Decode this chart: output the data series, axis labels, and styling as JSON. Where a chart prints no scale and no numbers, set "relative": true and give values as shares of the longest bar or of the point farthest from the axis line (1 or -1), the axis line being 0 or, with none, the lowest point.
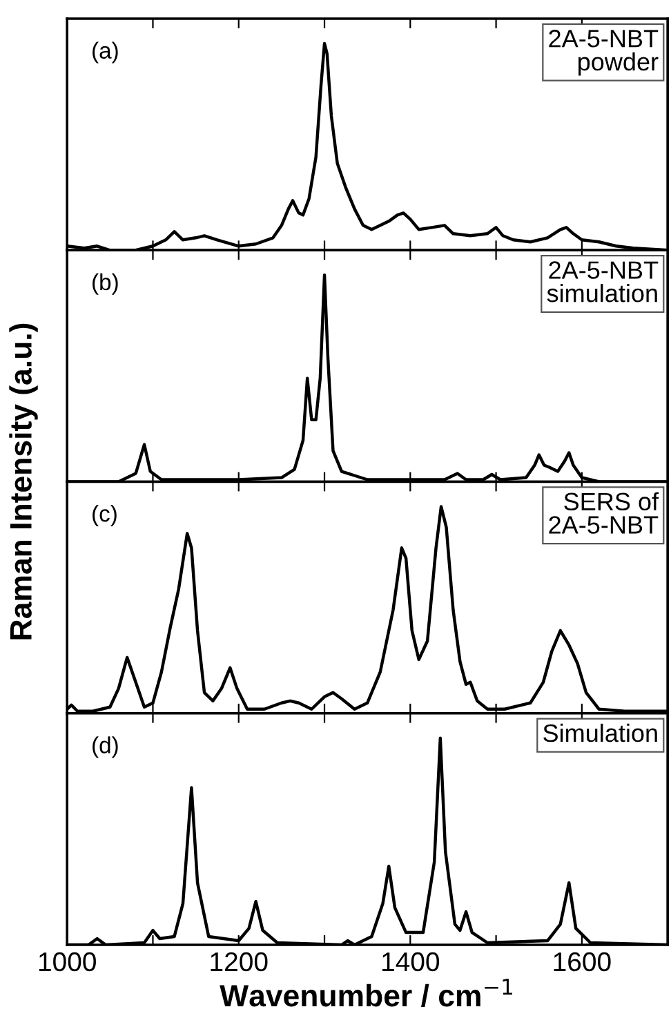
{
  "chart_data": [
    {
      "type": "line",
      "relative": true,
      "ylabel": "Raman Intensity (a.u.)",
      "annotations": [
        "(a)",
        "2A-5-NBT\npowder"
      ],
      "xlim": [
        1000,
        1700
      ],
      "xticks": [
        1000,
        {
          "value": 1100,
          "label": null
        },
        1200,
        {
          "value": 1300,
          "label": null
        },
        1400,
        {
          "value": 1500,
          "label": null
        },
        1600,
        {
          "value": 1700,
          "label": null
        }
      ],
      "tick_labels": false,
      "grid": false,
      "legend": false,
      "series": [
        {
          "color": "#000000",
          "x": [
            1000,
            1020,
            1035,
            1050,
            1080,
            1100,
            1115,
            1125,
            1135,
            1150,
            1160,
            1175,
            1200,
            1220,
            1240,
            1250,
            1258,
            1263,
            1270,
            1275,
            1282,
            1290,
            1296,
            1300,
            1303,
            1308,
            1315,
            1325,
            1335,
            1345,
            1355,
            1365,
            1375,
            1385,
            1392,
            1400,
            1410,
            1425,
            1440,
            1450,
            1470,
            1490,
            1500,
            1508,
            1520,
            1540,
            1560,
            1575,
            1582,
            1590,
            1600,
            1620,
            1640,
            1660,
            1700
          ],
          "values": [
            0.02,
            0.01,
            0.02,
            0,
            0,
            0.02,
            0.05,
            0.09,
            0.05,
            0.06,
            0.07,
            0.05,
            0.02,
            0.03,
            0.06,
            0.12,
            0.2,
            0.24,
            0.18,
            0.17,
            0.25,
            0.45,
            0.8,
            1.0,
            0.95,
            0.65,
            0.42,
            0.3,
            0.2,
            0.12,
            0.1,
            0.12,
            0.14,
            0.17,
            0.18,
            0.15,
            0.1,
            0.11,
            0.12,
            0.08,
            0.07,
            0.08,
            0.11,
            0.07,
            0.05,
            0.04,
            0.06,
            0.1,
            0.11,
            0.08,
            0.05,
            0.04,
            0.02,
            0.01,
            0
          ]
        }
      ]
    },
    {
      "type": "line",
      "relative": true,
      "annotations": [
        "(b)",
        "2A-5-NBT\nsimulation"
      ],
      "xlim": [
        1000,
        1700
      ],
      "xticks": [
        1000,
        {
          "value": 1100,
          "label": null
        },
        1200,
        {
          "value": 1300,
          "label": null
        },
        1400,
        {
          "value": 1500,
          "label": null
        },
        1600,
        {
          "value": 1700,
          "label": null
        }
      ],
      "tick_labels": false,
      "grid": false,
      "legend": false,
      "series": [
        {
          "color": "#000000",
          "x": [
            1000,
            1060,
            1080,
            1090,
            1097,
            1110,
            1200,
            1250,
            1265,
            1275,
            1280,
            1285,
            1290,
            1295,
            1300,
            1304,
            1310,
            1320,
            1350,
            1440,
            1455,
            1465,
            1485,
            1495,
            1505,
            1535,
            1545,
            1550,
            1556,
            1562,
            1572,
            1580,
            1585,
            1590,
            1600,
            1620,
            1700
          ],
          "values": [
            0,
            0,
            0.04,
            0.18,
            0.05,
            0.01,
            0.01,
            0.02,
            0.06,
            0.2,
            0.5,
            0.3,
            0.3,
            0.5,
            1.0,
            0.6,
            0.15,
            0.05,
            0.01,
            0.01,
            0.04,
            0.01,
            0.01,
            0.035,
            0.01,
            0.02,
            0.08,
            0.13,
            0.08,
            0.07,
            0.05,
            0.1,
            0.14,
            0.08,
            0.02,
            0,
            0
          ]
        }
      ]
    },
    {
      "type": "line",
      "relative": true,
      "annotations": [
        "(c)",
        "SERS of\n2A-5-NBT"
      ],
      "xlim": [
        1000,
        1700
      ],
      "xticks": [
        1000,
        {
          "value": 1100,
          "label": null
        },
        1200,
        {
          "value": 1300,
          "label": null
        },
        1400,
        {
          "value": 1500,
          "label": null
        },
        1600,
        {
          "value": 1700,
          "label": null
        }
      ],
      "tick_labels": false,
      "grid": false,
      "legend": false,
      "series": [
        {
          "color": "#000000",
          "x": [
            1000,
            1005,
            1012,
            1030,
            1040,
            1050,
            1060,
            1070,
            1080,
            1090,
            1100,
            1110,
            1120,
            1130,
            1140,
            1145,
            1152,
            1160,
            1170,
            1180,
            1190,
            1198,
            1210,
            1230,
            1250,
            1260,
            1270,
            1285,
            1300,
            1310,
            1320,
            1335,
            1350,
            1365,
            1380,
            1390,
            1395,
            1402,
            1410,
            1420,
            1430,
            1436,
            1442,
            1450,
            1458,
            1465,
            1470,
            1478,
            1490,
            1510,
            1540,
            1555,
            1565,
            1575,
            1585,
            1595,
            1605,
            1620,
            1650,
            1700
          ],
          "values": [
            0.02,
            0.04,
            0.01,
            0.01,
            0.02,
            0.03,
            0.12,
            0.27,
            0.15,
            0.03,
            0.05,
            0.2,
            0.41,
            0.6,
            0.87,
            0.8,
            0.4,
            0.1,
            0.06,
            0.12,
            0.22,
            0.12,
            0.02,
            0.02,
            0.05,
            0.06,
            0.05,
            0.02,
            0.08,
            0.1,
            0.07,
            0.02,
            0.05,
            0.2,
            0.5,
            0.8,
            0.75,
            0.4,
            0.26,
            0.35,
            0.8,
            1.0,
            0.9,
            0.5,
            0.25,
            0.14,
            0.15,
            0.06,
            0.02,
            0.02,
            0.05,
            0.15,
            0.3,
            0.4,
            0.33,
            0.24,
            0.1,
            0.02,
            0.01,
            0.01
          ]
        }
      ]
    },
    {
      "type": "line",
      "relative": true,
      "xlabel": "Wavenumber / cm$^{−1}$",
      "annotations": [
        "(d)",
        "Simulation"
      ],
      "xlim": [
        1000,
        1700
      ],
      "xticks": [
        1000,
        {
          "value": 1100,
          "label": null
        },
        1200,
        {
          "value": 1300,
          "label": null
        },
        1400,
        {
          "value": 1500,
          "label": null
        },
        1600,
        {
          "value": 1700,
          "label": null
        }
      ],
      "tick_labels": "x",
      "grid": false,
      "legend": false,
      "series": [
        {
          "color": "#000000",
          "x": [
            1000,
            1025,
            1035,
            1045,
            1090,
            1100,
            1108,
            1125,
            1135,
            1145,
            1152,
            1165,
            1200,
            1212,
            1220,
            1228,
            1245,
            1320,
            1327,
            1335,
            1355,
            1368,
            1375,
            1382,
            1395,
            1415,
            1428,
            1435,
            1441,
            1452,
            1458,
            1465,
            1472,
            1490,
            1560,
            1575,
            1585,
            1593,
            1610,
            1700
          ],
          "values": [
            0,
            0,
            0.03,
            0,
            0.01,
            0.07,
            0.03,
            0.04,
            0.2,
            0.76,
            0.3,
            0.04,
            0.02,
            0.08,
            0.21,
            0.07,
            0.01,
            0,
            0.02,
            0,
            0.04,
            0.2,
            0.38,
            0.18,
            0.06,
            0.06,
            0.4,
            1.0,
            0.45,
            0.1,
            0.07,
            0.16,
            0.06,
            0.01,
            0.02,
            0.1,
            0.3,
            0.08,
            0.01,
            0
          ]
        }
      ]
    }
  ]
}
